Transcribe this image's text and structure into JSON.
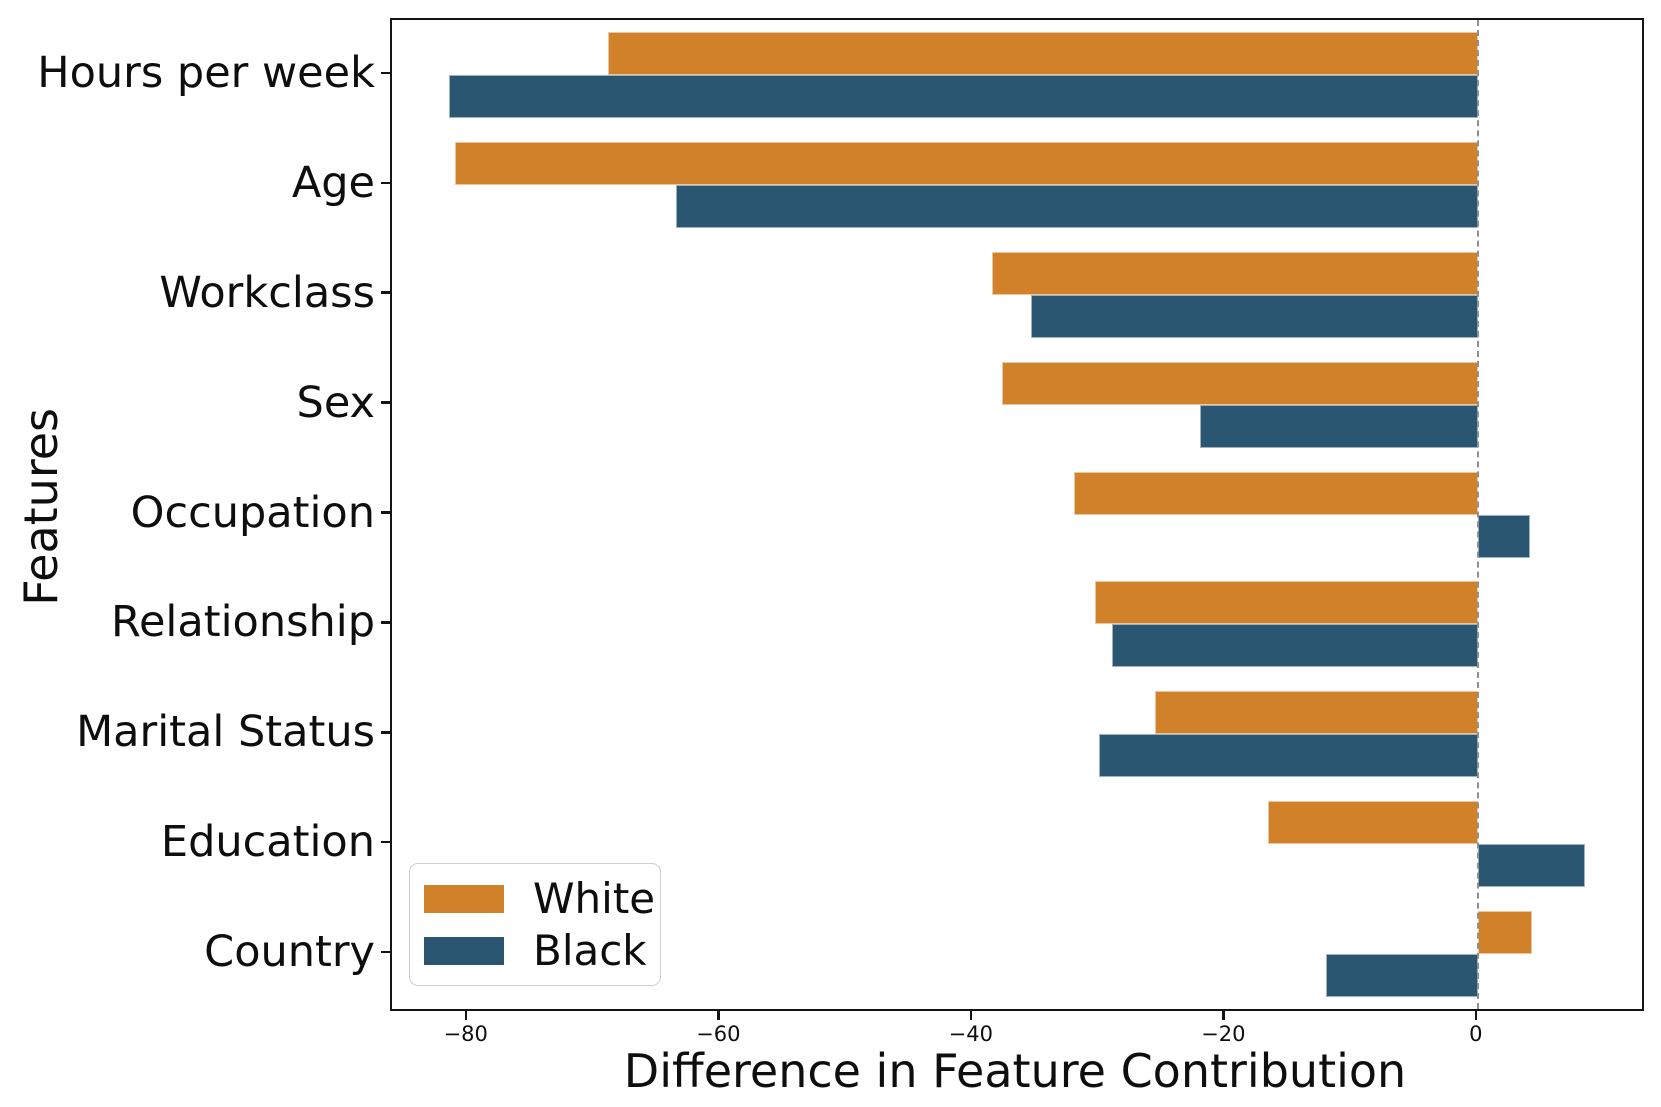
{
  "chart_data": {
    "type": "bar",
    "orientation": "horizontal",
    "xlabel": "Difference in Feature Contribution",
    "ylabel": "Features",
    "categories": [
      "Hours per week",
      "Age",
      "Workclass",
      "Sex",
      "Occupation",
      "Relationship",
      "Marital Status",
      "Education",
      "Country"
    ],
    "series": [
      {
        "name": "White",
        "color": "#D2812B",
        "values": [
          -68.9,
          -81.0,
          -38.5,
          -37.7,
          -32.0,
          -30.3,
          -25.6,
          -16.6,
          4.3
        ]
      },
      {
        "name": "Black",
        "color": "#2B5672",
        "values": [
          -81.5,
          -63.5,
          -35.4,
          -22.0,
          4.1,
          -29.0,
          -30.0,
          8.5,
          -12.0
        ]
      }
    ],
    "xlim": [
      -86,
      13
    ],
    "xticks": {
      "values": [
        -80,
        -60,
        -40,
        -20,
        0
      ],
      "labels": [
        "−80",
        "−60",
        "−40",
        "−20",
        "0"
      ]
    },
    "zero_line": true,
    "grid": false,
    "legend_position": "lower left",
    "colors": {
      "zero_line": "#8f8f8f",
      "spine": "#141414",
      "background": "#ffffff"
    }
  },
  "legend": {
    "items": [
      {
        "label": "White",
        "color": "#D2812B"
      },
      {
        "label": "Black",
        "color": "#2B5672"
      }
    ]
  }
}
